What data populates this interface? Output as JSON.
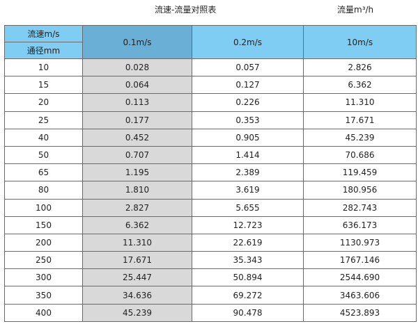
{
  "title": "流速-流量对照表",
  "unit_label": "流量m³/h",
  "table": {
    "header_speed": "流速m/s",
    "header_diameter": "通径mm",
    "columns": [
      "0.1m/s",
      "0.2m/s",
      "10m/s"
    ],
    "rows": [
      [
        "10",
        "0.028",
        "0.057",
        "2.826"
      ],
      [
        "15",
        "0.064",
        "0.127",
        "6.362"
      ],
      [
        "20",
        "0.113",
        "0.226",
        "11.310"
      ],
      [
        "25",
        "0.177",
        "0.353",
        "17.671"
      ],
      [
        "40",
        "0.452",
        "0.905",
        "45.239"
      ],
      [
        "50",
        "0.707",
        "1.414",
        "70.686"
      ],
      [
        "65",
        "1.195",
        "2.389",
        "119.459"
      ],
      [
        "80",
        "1.810",
        "3.619",
        "180.956"
      ],
      [
        "100",
        "2.827",
        "5.655",
        "282.743"
      ],
      [
        "150",
        "6.362",
        "12.723",
        "636.173"
      ],
      [
        "200",
        "11.310",
        "22.619",
        "1130.973"
      ],
      [
        "250",
        "17.671",
        "35.343",
        "1767.146"
      ],
      [
        "300",
        "25.447",
        "50.894",
        "2544.690"
      ],
      [
        "350",
        "34.636",
        "69.272",
        "3463.606"
      ],
      [
        "400",
        "45.239",
        "90.478",
        "4523.893"
      ]
    ]
  },
  "colors": {
    "header": "#7fcdf2",
    "highlight_header": "#6aafd6",
    "highlight_column": "#d9d9d9"
  }
}
